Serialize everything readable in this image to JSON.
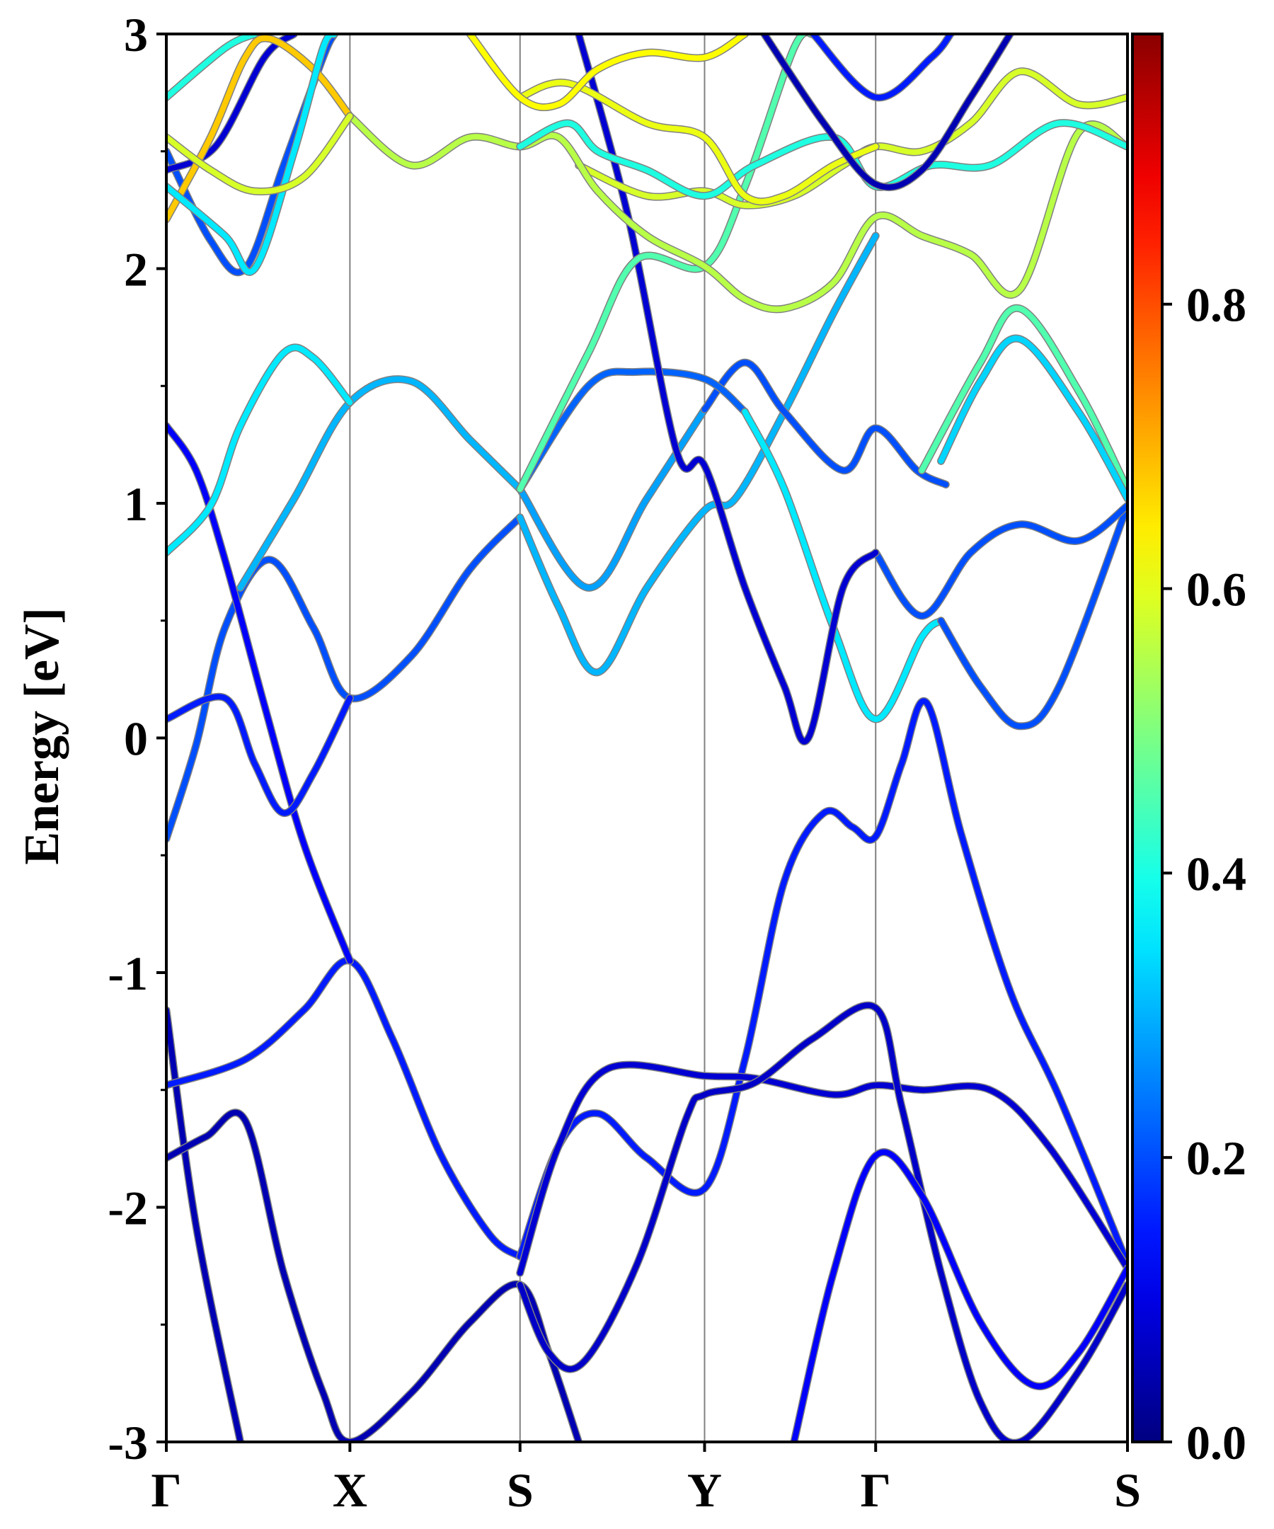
{
  "chart_data": {
    "type": "line",
    "title": "",
    "xlabel": "",
    "ylabel": "Energy [eV]",
    "ylim": [
      -3,
      3
    ],
    "xlim": [
      0,
      1
    ],
    "grid": "vertical lines at high-symmetry points",
    "y_ticks": [
      "-3",
      "-2",
      "-1",
      "0",
      "1",
      "2",
      "3"
    ],
    "y_tick_values": [
      -3,
      -2,
      -1,
      0,
      1,
      2,
      3
    ],
    "x_ticks": [
      "Γ",
      "X",
      "S",
      "Y",
      "Γ",
      "S"
    ],
    "x_tick_values": [
      0,
      0.191,
      0.368,
      0.56,
      0.738,
      1.0
    ],
    "colorbar": {
      "colormap": "jet",
      "range": [
        0,
        0.99
      ],
      "ticks": [
        "0.0",
        "0.2",
        "0.4",
        "0.6",
        "0.8"
      ],
      "tick_values": [
        0,
        0.2,
        0.4,
        0.6,
        0.8
      ]
    },
    "colors": {
      "band_outline": "#808080",
      "axis": "#000000",
      "gridline": "#808080"
    },
    "bands": [
      {
        "weight": 0.05,
        "points": [
          [
            0,
            -1.16
          ],
          [
            0.031,
            -2.08
          ],
          [
            0.077,
            -3
          ]
        ]
      },
      {
        "weight": 0.05,
        "points": [
          [
            0,
            -1.79
          ],
          [
            0.041,
            -1.7
          ],
          [
            0.082,
            -1.63
          ],
          [
            0.122,
            -2.28
          ],
          [
            0.163,
            -2.79
          ],
          [
            0.191,
            -3
          ],
          [
            0.255,
            -2.79
          ],
          [
            0.316,
            -2.49
          ],
          [
            0.368,
            -2.33
          ],
          [
            0.398,
            -2.62
          ],
          [
            0.429,
            -3
          ]
        ]
      },
      {
        "weight": 0.15,
        "points": [
          [
            0,
            -1.48
          ],
          [
            0.082,
            -1.37
          ],
          [
            0.143,
            -1.16
          ],
          [
            0.191,
            -0.95
          ],
          [
            0.235,
            -1.28
          ],
          [
            0.286,
            -1.78
          ],
          [
            0.337,
            -2.12
          ],
          [
            0.368,
            -2.21
          ]
        ]
      },
      {
        "weight": 0.15,
        "points": [
          [
            0.368,
            -2.21
          ],
          [
            0.408,
            -1.74
          ],
          [
            0.449,
            -1.6
          ],
          [
            0.5,
            -1.79
          ],
          [
            0.56,
            -1.92
          ],
          [
            0.602,
            -1.37
          ],
          [
            0.643,
            -0.61
          ],
          [
            0.684,
            -0.32
          ],
          [
            0.714,
            -0.38
          ],
          [
            0.738,
            -0.42
          ],
          [
            0.765,
            -0.11
          ],
          [
            0.791,
            0.15
          ],
          [
            0.827,
            -0.41
          ],
          [
            0.878,
            -1.08
          ],
          [
            0.929,
            -1.53
          ],
          [
            1.0,
            -2.24
          ]
        ]
      },
      {
        "weight": 0.08,
        "points": [
          [
            0.368,
            -2.28
          ],
          [
            0.408,
            -1.74
          ],
          [
            0.459,
            -1.41
          ],
          [
            0.56,
            -1.44
          ],
          [
            0.612,
            -1.45
          ],
          [
            0.694,
            -1.52
          ],
          [
            0.738,
            -1.48
          ],
          [
            0.786,
            -1.5
          ],
          [
            0.857,
            -1.5
          ],
          [
            0.918,
            -1.74
          ],
          [
            1.0,
            -2.26
          ]
        ]
      },
      {
        "weight": 0.07,
        "points": [
          [
            0.368,
            -2.33
          ],
          [
            0.398,
            -2.62
          ],
          [
            0.434,
            -2.66
          ],
          [
            0.49,
            -2.24
          ],
          [
            0.541,
            -1.62
          ],
          [
            0.56,
            -1.52
          ],
          [
            0.612,
            -1.47
          ],
          [
            0.673,
            -1.28
          ],
          [
            0.738,
            -1.15
          ],
          [
            0.765,
            -1.57
          ],
          [
            0.806,
            -2.28
          ],
          [
            0.847,
            -2.83
          ],
          [
            0.888,
            -3
          ],
          [
            0.949,
            -2.7
          ],
          [
            1.0,
            -2.33
          ]
        ]
      },
      {
        "weight": 0.12,
        "points": [
          [
            0.653,
            -3
          ],
          [
            0.694,
            -2.28
          ],
          [
            0.738,
            -1.78
          ],
          [
            0.786,
            -1.95
          ],
          [
            0.847,
            -2.49
          ],
          [
            0.903,
            -2.76
          ],
          [
            0.949,
            -2.62
          ],
          [
            1.0,
            -2.26
          ]
        ]
      },
      {
        "weight": 0.2,
        "points": [
          [
            0,
            -0.43
          ],
          [
            0.031,
            -0.03
          ],
          [
            0.061,
            0.47
          ],
          [
            0.107,
            0.76
          ],
          [
            0.153,
            0.47
          ],
          [
            0.191,
            0.17
          ],
          [
            0.255,
            0.35
          ],
          [
            0.316,
            0.72
          ],
          [
            0.368,
            0.94
          ]
        ]
      },
      {
        "weight": 0.3,
        "points": [
          [
            0.368,
            0.94
          ],
          [
            0.408,
            0.56
          ],
          [
            0.449,
            0.28
          ],
          [
            0.5,
            0.64
          ],
          [
            0.56,
            0.97
          ],
          [
            0.592,
            1.02
          ],
          [
            0.643,
            1.39
          ],
          [
            0.694,
            1.81
          ],
          [
            0.738,
            2.14
          ]
        ]
      },
      {
        "weight": 0.3,
        "points": [
          [
            0.077,
            0.64
          ],
          [
            0.133,
            1.02
          ],
          [
            0.191,
            1.43
          ],
          [
            0.255,
            1.52
          ],
          [
            0.316,
            1.27
          ],
          [
            0.368,
            1.06
          ]
        ]
      },
      {
        "weight": 0.28,
        "points": [
          [
            0.368,
            1.06
          ],
          [
            0.439,
            0.64
          ],
          [
            0.5,
            1.02
          ],
          [
            0.56,
            1.4
          ]
        ]
      },
      {
        "weight": 0.2,
        "points": [
          [
            0.56,
            1.4
          ],
          [
            0.602,
            1.6
          ],
          [
            0.643,
            1.39
          ],
          [
            0.704,
            1.14
          ],
          [
            0.738,
            1.32
          ],
          [
            0.781,
            1.14
          ],
          [
            0.811,
            1.08
          ]
        ]
      },
      {
        "weight": 0.12,
        "points": [
          [
            0,
            1.33
          ],
          [
            0.031,
            1.14
          ],
          [
            0.061,
            0.76
          ],
          [
            0.102,
            0.14
          ],
          [
            0.143,
            -0.45
          ],
          [
            0.191,
            -0.95
          ]
        ]
      },
      {
        "weight": 0.15,
        "points": [
          [
            0,
            0.08
          ],
          [
            0.061,
            0.17
          ],
          [
            0.092,
            -0.11
          ],
          [
            0.122,
            -0.32
          ],
          [
            0.153,
            -0.15
          ],
          [
            0.191,
            0.17
          ]
        ]
      },
      {
        "weight": 0.35,
        "points": [
          [
            0,
            0.79
          ],
          [
            0.046,
            0.99
          ],
          [
            0.077,
            1.33
          ],
          [
            0.122,
            1.64
          ],
          [
            0.153,
            1.62
          ],
          [
            0.191,
            1.43
          ]
        ]
      },
      {
        "weight": 0.22,
        "points": [
          [
            0.368,
            1.06
          ],
          [
            0.439,
            1.5
          ],
          [
            0.49,
            1.56
          ],
          [
            0.56,
            1.53
          ],
          [
            0.602,
            1.39
          ]
        ]
      },
      {
        "weight": 0.35,
        "points": [
          [
            0.602,
            1.39
          ],
          [
            0.643,
            1.06
          ],
          [
            0.694,
            0.47
          ],
          [
            0.738,
            0.08
          ],
          [
            0.786,
            0.43
          ],
          [
            0.806,
            0.5
          ]
        ]
      },
      {
        "weight": 0.2,
        "points": [
          [
            0.806,
            0.5
          ],
          [
            0.847,
            0.22
          ],
          [
            0.888,
            0.05
          ],
          [
            0.929,
            0.22
          ],
          [
            1.0,
            0.99
          ]
        ]
      },
      {
        "weight": 0.2,
        "points": [
          [
            0.738,
            0.79
          ],
          [
            0.786,
            0.52
          ],
          [
            0.837,
            0.79
          ],
          [
            0.888,
            0.91
          ],
          [
            0.949,
            0.84
          ],
          [
            1.0,
            0.99
          ]
        ]
      },
      {
        "weight": 0.08,
        "points": [
          [
            0.429,
            3
          ],
          [
            0.48,
            2.23
          ],
          [
            0.531,
            1.22
          ],
          [
            0.56,
            1.16
          ],
          [
            0.602,
            0.64
          ],
          [
            0.643,
            0.22
          ],
          [
            0.668,
            0.0
          ],
          [
            0.704,
            0.64
          ],
          [
            0.738,
            0.79
          ]
        ]
      },
      {
        "weight": 0.45,
        "points": [
          [
            0.786,
            1.14
          ],
          [
            0.847,
            1.6
          ],
          [
            0.888,
            1.83
          ],
          [
            0.949,
            1.48
          ],
          [
            1.0,
            1.06
          ]
        ]
      },
      {
        "weight": 0.33,
        "points": [
          [
            0.806,
            1.18
          ],
          [
            0.847,
            1.52
          ],
          [
            0.888,
            1.7
          ],
          [
            0.949,
            1.39
          ],
          [
            1.0,
            1.02
          ]
        ]
      },
      {
        "weight": 0.45,
        "points": [
          [
            0.368,
            1.06
          ],
          [
            0.439,
            1.64
          ],
          [
            0.49,
            2.04
          ],
          [
            0.56,
            2.01
          ],
          [
            0.602,
            2.35
          ],
          [
            0.653,
            2.94
          ],
          [
            0.673,
            3
          ]
        ]
      },
      {
        "weight": 0.58,
        "points": [
          [
            0.429,
            2.44
          ],
          [
            0.5,
            2.31
          ],
          [
            0.56,
            2.33
          ],
          [
            0.602,
            2.27
          ],
          [
            0.653,
            2.31
          ],
          [
            0.704,
            2.44
          ],
          [
            0.738,
            2.52
          ],
          [
            0.786,
            2.5
          ],
          [
            0.837,
            2.62
          ],
          [
            0.888,
            2.84
          ],
          [
            0.949,
            2.7
          ],
          [
            1.0,
            2.73
          ]
        ]
      },
      {
        "weight": 0.55,
        "points": [
          [
            0.191,
            2.65
          ],
          [
            0.255,
            2.44
          ],
          [
            0.316,
            2.56
          ],
          [
            0.368,
            2.52
          ],
          [
            0.408,
            2.56
          ],
          [
            0.449,
            2.33
          ],
          [
            0.5,
            2.14
          ],
          [
            0.56,
            2.01
          ],
          [
            0.602,
            1.87
          ],
          [
            0.643,
            1.83
          ],
          [
            0.694,
            1.94
          ],
          [
            0.738,
            2.22
          ],
          [
            0.786,
            2.14
          ],
          [
            0.837,
            2.06
          ],
          [
            0.888,
            1.91
          ],
          [
            0.949,
            2.58
          ],
          [
            1.0,
            2.52
          ]
        ]
      },
      {
        "weight": 0.4,
        "points": [
          [
            0.368,
            2.52
          ],
          [
            0.418,
            2.62
          ],
          [
            0.449,
            2.5
          ],
          [
            0.5,
            2.42
          ],
          [
            0.56,
            2.31
          ],
          [
            0.612,
            2.44
          ],
          [
            0.694,
            2.56
          ],
          [
            0.738,
            2.35
          ],
          [
            0.796,
            2.44
          ],
          [
            0.857,
            2.44
          ],
          [
            0.929,
            2.62
          ],
          [
            1.0,
            2.52
          ]
        ]
      },
      {
        "weight": 0.6,
        "points": [
          [
            0.368,
            2.73
          ],
          [
            0.418,
            2.79
          ],
          [
            0.5,
            2.62
          ],
          [
            0.56,
            2.56
          ],
          [
            0.602,
            2.31
          ],
          [
            0.643,
            2.31
          ],
          [
            0.694,
            2.44
          ],
          [
            0.738,
            2.52
          ]
        ]
      },
      {
        "weight": 0.62,
        "points": [
          [
            0.316,
            3
          ],
          [
            0.368,
            2.73
          ],
          [
            0.408,
            2.7
          ],
          [
            0.449,
            2.85
          ],
          [
            0.5,
            2.92
          ],
          [
            0.56,
            2.9
          ],
          [
            0.602,
            3
          ]
        ]
      },
      {
        "weight": 0.05,
        "points": [
          [
            0.622,
            3
          ],
          [
            0.684,
            2.62
          ],
          [
            0.738,
            2.36
          ],
          [
            0.786,
            2.42
          ],
          [
            0.837,
            2.73
          ],
          [
            0.878,
            3
          ]
        ]
      },
      {
        "weight": 0.15,
        "points": [
          [
            0.673,
            3
          ],
          [
            0.738,
            2.73
          ],
          [
            0.796,
            2.9
          ],
          [
            0.816,
            3
          ]
        ]
      },
      {
        "weight": 0.2,
        "points": [
          [
            0,
            2.5
          ],
          [
            0.046,
            2.12
          ],
          [
            0.082,
            2.0
          ],
          [
            0.122,
            2.44
          ],
          [
            0.163,
            2.9
          ],
          [
            0.175,
            3
          ]
        ]
      },
      {
        "weight": 0.08,
        "points": [
          [
            0,
            2.42
          ],
          [
            0.051,
            2.52
          ],
          [
            0.102,
            2.9
          ],
          [
            0.133,
            3
          ]
        ]
      },
      {
        "weight": 0.67,
        "points": [
          [
            0,
            2.21
          ],
          [
            0.046,
            2.56
          ],
          [
            0.082,
            2.9
          ],
          [
            0.107,
            2.98
          ],
          [
            0.153,
            2.85
          ],
          [
            0.191,
            2.65
          ]
        ]
      },
      {
        "weight": 0.4,
        "points": [
          [
            0,
            2.73
          ],
          [
            0.061,
            2.94
          ],
          [
            0.092,
            3
          ]
        ]
      },
      {
        "weight": 0.35,
        "points": [
          [
            0,
            2.35
          ],
          [
            0.061,
            2.14
          ],
          [
            0.092,
            2.0
          ],
          [
            0.133,
            2.5
          ],
          [
            0.163,
            2.94
          ],
          [
            0.175,
            3
          ]
        ]
      },
      {
        "weight": 0.58,
        "points": [
          [
            0,
            2.56
          ],
          [
            0.046,
            2.42
          ],
          [
            0.092,
            2.33
          ],
          [
            0.143,
            2.39
          ],
          [
            0.191,
            2.65
          ]
        ]
      }
    ]
  }
}
